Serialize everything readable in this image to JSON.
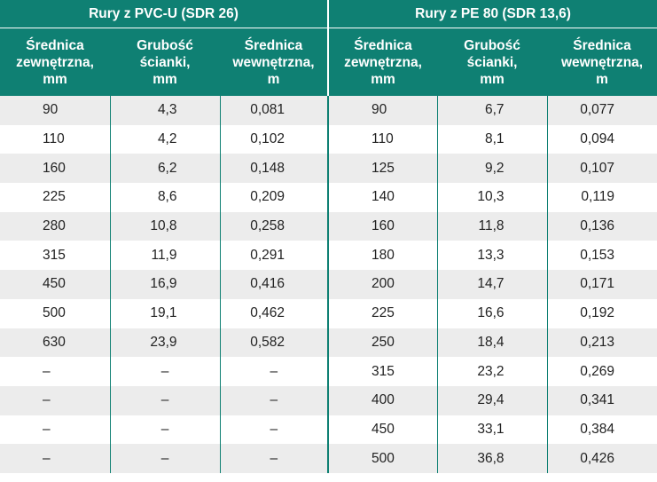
{
  "group_headers": [
    "Rury z PVC-U (SDR 26)",
    "Rury z PE 80 (SDR 13,6)"
  ],
  "column_headers": [
    "Średnica\nzewnętrzna,\nmm",
    "Grubość\nścianki,\nmm",
    "Średnica\nwewnętrzna,\nm",
    "Średnica\nzewnętrzna,\nmm",
    "Grubość\nścianki,\nmm",
    "Średnica\nwewnętrzna,\nm"
  ],
  "rows": [
    [
      "90",
      "4,3",
      "0,081",
      "90",
      "6,7",
      "0,077"
    ],
    [
      "110",
      "4,2",
      "0,102",
      "110",
      "8,1",
      "0,094"
    ],
    [
      "160",
      "6,2",
      "0,148",
      "125",
      "9,2",
      "0,107"
    ],
    [
      "225",
      "8,6",
      "0,209",
      "140",
      "10,3",
      "0,119"
    ],
    [
      "280",
      "10,8",
      "0,258",
      "160",
      "11,8",
      "0,136"
    ],
    [
      "315",
      "11,9",
      "0,291",
      "180",
      "13,3",
      "0,153"
    ],
    [
      "450",
      "16,9",
      "0,416",
      "200",
      "14,7",
      "0,171"
    ],
    [
      "500",
      "19,1",
      "0,462",
      "225",
      "16,6",
      "0,192"
    ],
    [
      "630",
      "23,9",
      "0,582",
      "250",
      "18,4",
      "0,213"
    ],
    [
      "–",
      "–",
      "–",
      "315",
      "23,2",
      "0,269"
    ],
    [
      "–",
      "–",
      "–",
      "400",
      "29,4",
      "0,341"
    ],
    [
      "–",
      "–",
      "–",
      "450",
      "33,1",
      "0,384"
    ],
    [
      "–",
      "–",
      "–",
      "500",
      "36,8",
      "0,426"
    ]
  ],
  "colors": {
    "header_bg": "#0f8073",
    "stripe_bg": "#ececec"
  }
}
